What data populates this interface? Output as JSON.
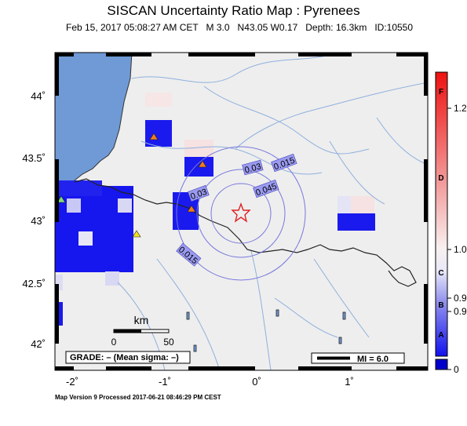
{
  "title": "SISCAN Uncertainty Ratio Map : Pyrenees",
  "subtitle": "Feb 15, 2017 05:08:27 AM CET   M 3.0   N43.05 W0.17   Depth: 16.3km   ID:10550",
  "footer": "Map Version 9 Processed 2017-06-21 08:46:29 PM CEST",
  "lat_ticks": [
    "44˚",
    "43.5˚",
    "43˚",
    "42.5˚",
    "42˚"
  ],
  "lon_ticks": [
    "-2˚",
    "-1˚",
    "0˚",
    "1˚"
  ],
  "contour_labels": [
    "0.015",
    "0.03",
    "0.045",
    "0.03",
    "0.015"
  ],
  "scale_bar": {
    "unit": "km",
    "start": "0",
    "end": "50"
  },
  "grade_box": "GRADE: – (Mean sigma: –)",
  "mi_box": "MI = 6.0",
  "colorbar": {
    "letters": [
      "F",
      "D",
      "C",
      "B",
      "A"
    ],
    "values": [
      "1.2",
      "1.0",
      "0.9",
      "0.9",
      "0"
    ]
  },
  "colors": {
    "ocean": "#6f9ad6",
    "land": "#eeeeee",
    "river": "#8fb0dd",
    "contour": "#7777dd",
    "epicenter": "#dd2222",
    "colorbar_top": "#ee1111",
    "colorbar_bottom": "#0000ee"
  }
}
